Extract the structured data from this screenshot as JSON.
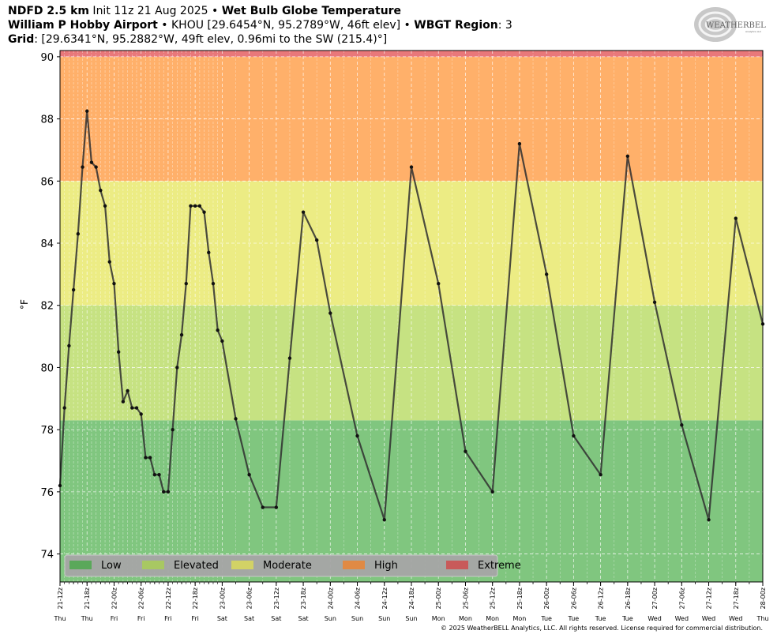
{
  "header": {
    "line1_bold1": "NDFD 2.5 km",
    "line1_text": " Init 11z 21 Aug 2025 • ",
    "line1_bold2": "Wet Bulb Globe Temperature",
    "line2_bold1": "William P Hobby Airport",
    "line2_text1": " • KHOU [29.6454°N, 95.2789°W, 46ft elev] • ",
    "line2_bold2": "WBGT Region",
    "line2_text2": ": 3",
    "line3_bold": "Grid",
    "line3_text": ": [29.6341°N, 95.2882°W, 49ft elev, 0.96mi to the SW (215.4)°]"
  },
  "logo": {
    "text": "WEATHERBELL",
    "sub": "Analytics LLC"
  },
  "footer": "© 2025 WeatherBELL Analytics, LLC. All rights reserved. License required for commercial distribution.",
  "chart_data": {
    "type": "line",
    "ylabel": "°F",
    "xlabel": "",
    "ylim": [
      73.1,
      90.2
    ],
    "yticks": [
      74,
      76,
      78,
      80,
      82,
      84,
      86,
      88,
      90
    ],
    "grid": true,
    "legend_position": "lower-left",
    "bands": [
      {
        "name": "Low",
        "from": 73.1,
        "to": 78.3,
        "color": "#80c67f",
        "swatch": "#5aa85a"
      },
      {
        "name": "Elevated",
        "from": 78.3,
        "to": 82.0,
        "color": "#c6e282",
        "swatch": "#a8c862"
      },
      {
        "name": "Moderate",
        "from": 82.0,
        "to": 86.0,
        "color": "#ecec84",
        "swatch": "#d2d266"
      },
      {
        "name": "High",
        "from": 86.0,
        "to": 90.0,
        "color": "#ffb06a",
        "swatch": "#e08a44"
      },
      {
        "name": "Extreme",
        "from": 90.0,
        "to": 90.2,
        "color": "#e9787a",
        "swatch": "#c85a5a"
      }
    ],
    "x_ticks": [
      {
        "h": 0,
        "label": "21-12z",
        "day": "Thu"
      },
      {
        "h": 6,
        "label": "21-18z",
        "day": "Thu"
      },
      {
        "h": 12,
        "label": "22-00z",
        "day": "Fri"
      },
      {
        "h": 18,
        "label": "22-06z",
        "day": "Fri"
      },
      {
        "h": 24,
        "label": "22-12z",
        "day": "Fri"
      },
      {
        "h": 30,
        "label": "22-18z",
        "day": "Fri"
      },
      {
        "h": 36,
        "label": "23-00z",
        "day": "Sat"
      },
      {
        "h": 42,
        "label": "23-06z",
        "day": "Sat"
      },
      {
        "h": 48,
        "label": "23-12z",
        "day": "Sat"
      },
      {
        "h": 54,
        "label": "23-18z",
        "day": "Sat"
      },
      {
        "h": 60,
        "label": "24-00z",
        "day": "Sun"
      },
      {
        "h": 66,
        "label": "24-06z",
        "day": "Sun"
      },
      {
        "h": 72,
        "label": "24-12z",
        "day": "Sun"
      },
      {
        "h": 78,
        "label": "24-18z",
        "day": "Sun"
      },
      {
        "h": 84,
        "label": "25-00z",
        "day": "Mon"
      },
      {
        "h": 90,
        "label": "25-06z",
        "day": "Mon"
      },
      {
        "h": 96,
        "label": "25-12z",
        "day": "Mon"
      },
      {
        "h": 102,
        "label": "25-18z",
        "day": "Mon"
      },
      {
        "h": 108,
        "label": "26-00z",
        "day": "Tue"
      },
      {
        "h": 114,
        "label": "26-06z",
        "day": "Tue"
      },
      {
        "h": 120,
        "label": "26-12z",
        "day": "Tue"
      },
      {
        "h": 126,
        "label": "26-18z",
        "day": "Tue"
      },
      {
        "h": 132,
        "label": "27-00z",
        "day": "Wed"
      },
      {
        "h": 138,
        "label": "27-06z",
        "day": "Wed"
      },
      {
        "h": 144,
        "label": "27-12z",
        "day": "Wed"
      },
      {
        "h": 150,
        "label": "27-18z",
        "day": "Wed"
      },
      {
        "h": 156,
        "label": "28-00z",
        "day": "Thu"
      }
    ],
    "x": [
      0,
      1,
      2,
      3,
      4,
      5,
      6,
      7,
      8,
      9,
      10,
      11,
      12,
      13,
      14,
      15,
      16,
      17,
      18,
      19,
      20,
      21,
      22,
      23,
      24,
      25,
      26,
      27,
      28,
      29,
      30,
      31,
      32,
      33,
      34,
      35,
      36,
      39,
      42,
      45,
      48,
      51,
      54,
      57,
      60,
      66,
      72,
      78,
      84,
      90,
      96,
      102,
      108,
      114,
      120,
      126,
      132,
      138,
      144,
      150,
      156
    ],
    "y": [
      76.2,
      78.7,
      80.7,
      82.5,
      84.3,
      86.45,
      88.25,
      86.6,
      86.45,
      85.7,
      85.2,
      83.4,
      82.7,
      80.5,
      78.9,
      79.25,
      78.7,
      78.7,
      78.5,
      77.1,
      77.1,
      76.55,
      76.55,
      76.0,
      76.0,
      78.0,
      80.0,
      81.05,
      82.7,
      85.2,
      85.2,
      85.2,
      85.0,
      83.7,
      82.7,
      81.2,
      80.85,
      78.35,
      76.55,
      75.5,
      75.5,
      80.3,
      85.0,
      84.1,
      81.75,
      77.8,
      75.1,
      86.45,
      82.7,
      77.3,
      76.0,
      87.2,
      83.0,
      77.8,
      76.55,
      86.8,
      82.1,
      78.15,
      75.1,
      84.8,
      81.4
    ]
  }
}
